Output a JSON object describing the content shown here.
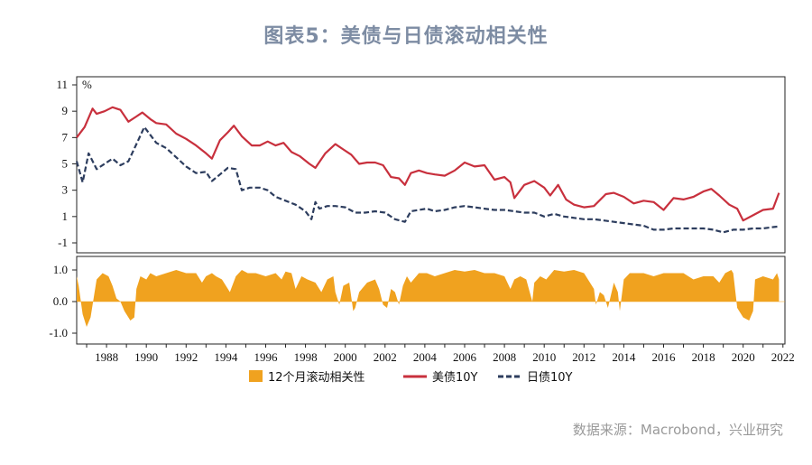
{
  "title": "图表5：美债与日债滚动相关性",
  "source": "数据来源：Macrobond，兴业研究",
  "colors": {
    "us": "#c8303d",
    "jp": "#2d3d5e",
    "corr": "#f0a21f"
  },
  "chart_data": [
    {
      "type": "line",
      "unit": "%",
      "xlim": [
        1987,
        2022.6
      ],
      "ylim": [
        -2,
        11
      ],
      "yticks": [
        "11",
        "9",
        "7",
        "5",
        "3",
        "1",
        "-1"
      ],
      "series": [
        {
          "name": "美债10Y",
          "x": [
            1987.0,
            1987.4,
            1987.8,
            1988.0,
            1988.4,
            1988.8,
            1989.2,
            1989.6,
            1990.0,
            1990.3,
            1990.7,
            1991.0,
            1991.5,
            1992.0,
            1992.5,
            1993.0,
            1993.5,
            1993.8,
            1994.2,
            1994.6,
            1994.9,
            1995.3,
            1995.8,
            1996.2,
            1996.6,
            1997.0,
            1997.4,
            1997.8,
            1998.2,
            1998.7,
            1999.0,
            1999.5,
            2000.0,
            2000.4,
            2000.8,
            2001.2,
            2001.6,
            2002.0,
            2002.4,
            2002.8,
            2003.2,
            2003.5,
            2003.8,
            2004.2,
            2004.6,
            2005.0,
            2005.5,
            2006.0,
            2006.5,
            2007.0,
            2007.5,
            2008.0,
            2008.5,
            2008.8,
            2009.0,
            2009.5,
            2010.0,
            2010.5,
            2010.8,
            2011.2,
            2011.6,
            2012.0,
            2012.5,
            2013.0,
            2013.6,
            2014.0,
            2014.5,
            2015.0,
            2015.5,
            2016.0,
            2016.5,
            2017.0,
            2017.5,
            2018.0,
            2018.5,
            2018.9,
            2019.3,
            2019.8,
            2020.2,
            2020.5,
            2021.0,
            2021.5,
            2022.0,
            2022.3
          ],
          "values": [
            7.0,
            7.8,
            9.2,
            8.8,
            9.0,
            9.3,
            9.1,
            8.2,
            8.6,
            8.9,
            8.4,
            8.1,
            8.0,
            7.3,
            6.9,
            6.4,
            5.8,
            5.4,
            6.8,
            7.4,
            7.9,
            7.1,
            6.4,
            6.4,
            6.7,
            6.4,
            6.6,
            5.9,
            5.6,
            5.0,
            4.7,
            5.8,
            6.5,
            6.1,
            5.7,
            5.0,
            5.1,
            5.1,
            4.9,
            4.0,
            3.9,
            3.4,
            4.3,
            4.5,
            4.3,
            4.2,
            4.1,
            4.5,
            5.1,
            4.8,
            4.9,
            3.8,
            4.0,
            3.6,
            2.4,
            3.4,
            3.7,
            3.2,
            2.6,
            3.4,
            2.3,
            1.9,
            1.7,
            1.8,
            2.7,
            2.8,
            2.5,
            2.0,
            2.2,
            2.1,
            1.5,
            2.4,
            2.3,
            2.5,
            2.9,
            3.1,
            2.6,
            1.9,
            1.6,
            0.7,
            1.1,
            1.5,
            1.6,
            2.8
          ]
        },
        {
          "name": "日债10Y",
          "x": [
            1987.0,
            1987.3,
            1987.6,
            1988.0,
            1988.4,
            1988.8,
            1989.2,
            1989.6,
            1990.0,
            1990.4,
            1990.7,
            1991.0,
            1991.5,
            1992.0,
            1992.5,
            1993.0,
            1993.5,
            1993.8,
            1994.2,
            1994.6,
            1995.0,
            1995.3,
            1995.7,
            1996.2,
            1996.6,
            1997.0,
            1997.5,
            1998.0,
            1998.5,
            1998.8,
            1999.0,
            1999.2,
            1999.6,
            2000.0,
            2000.5,
            2001.0,
            2001.5,
            2002.0,
            2002.5,
            2003.0,
            2003.5,
            2003.8,
            2004.2,
            2004.6,
            2005.0,
            2005.5,
            2006.0,
            2006.5,
            2007.0,
            2007.5,
            2008.0,
            2008.5,
            2009.0,
            2009.5,
            2010.0,
            2010.5,
            2011.0,
            2011.5,
            2012.0,
            2012.5,
            2013.0,
            2013.5,
            2014.0,
            2014.5,
            2015.0,
            2015.5,
            2016.0,
            2016.5,
            2017.0,
            2017.5,
            2018.0,
            2018.5,
            2019.0,
            2019.5,
            2020.0,
            2020.5,
            2021.0,
            2021.5,
            2022.0,
            2022.3
          ],
          "values": [
            5.2,
            3.6,
            5.8,
            4.6,
            5.0,
            5.4,
            4.9,
            5.2,
            6.5,
            7.8,
            7.2,
            6.6,
            6.2,
            5.5,
            4.8,
            4.3,
            4.4,
            3.7,
            4.2,
            4.7,
            4.6,
            3.0,
            3.2,
            3.2,
            3.0,
            2.5,
            2.2,
            1.9,
            1.4,
            0.8,
            2.1,
            1.6,
            1.8,
            1.8,
            1.7,
            1.3,
            1.3,
            1.4,
            1.3,
            0.8,
            0.6,
            1.4,
            1.5,
            1.6,
            1.4,
            1.5,
            1.7,
            1.8,
            1.7,
            1.6,
            1.5,
            1.5,
            1.4,
            1.3,
            1.3,
            1.0,
            1.2,
            1.0,
            0.9,
            0.8,
            0.8,
            0.7,
            0.6,
            0.5,
            0.4,
            0.3,
            0.0,
            0.0,
            0.1,
            0.1,
            0.1,
            0.1,
            0.0,
            -0.2,
            0.0,
            0.0,
            0.1,
            0.1,
            0.2,
            0.25
          ]
        }
      ]
    },
    {
      "type": "area",
      "ylim": [
        -1.0,
        1.0
      ],
      "yticks": [
        "1.0",
        "0.0",
        "-1.0"
      ],
      "xticks": [
        "1988",
        "1990",
        "1992",
        "1994",
        "1996",
        "1998",
        "2000",
        "2002",
        "2004",
        "2006",
        "2008",
        "2010",
        "2012",
        "2014",
        "2016",
        "2018",
        "2020",
        "2022"
      ],
      "series": [
        {
          "name": "12个月滚动相关性",
          "x": [
            1987.0,
            1987.1,
            1987.3,
            1987.5,
            1987.7,
            1988.0,
            1988.3,
            1988.6,
            1988.8,
            1989.0,
            1989.2,
            1989.4,
            1989.7,
            1989.9,
            1990.0,
            1990.2,
            1990.5,
            1990.7,
            1991.0,
            1991.5,
            1992.0,
            1992.5,
            1993.0,
            1993.3,
            1993.5,
            1993.8,
            1994.0,
            1994.3,
            1994.7,
            1995.0,
            1995.3,
            1995.6,
            1996.0,
            1996.5,
            1997.0,
            1997.3,
            1997.5,
            1997.8,
            1998.0,
            1998.3,
            1998.6,
            1999.0,
            1999.3,
            1999.6,
            1999.9,
            2000.0,
            2000.2,
            2000.4,
            2000.7,
            2000.9,
            2001.0,
            2001.2,
            2001.6,
            2002.0,
            2002.2,
            2002.4,
            2002.6,
            2002.8,
            2003.0,
            2003.2,
            2003.4,
            2003.6,
            2003.8,
            2004.2,
            2004.6,
            2005.0,
            2005.5,
            2006.0,
            2006.5,
            2007.0,
            2007.5,
            2008.0,
            2008.5,
            2008.8,
            2009.0,
            2009.3,
            2009.6,
            2009.9,
            2010.0,
            2010.3,
            2010.6,
            2011.0,
            2011.5,
            2012.0,
            2012.5,
            2013.0,
            2013.1,
            2013.3,
            2013.5,
            2013.7,
            2014.0,
            2014.2,
            2014.3,
            2014.5,
            2014.8,
            2015.0,
            2015.5,
            2016.0,
            2016.5,
            2017.0,
            2017.5,
            2018.0,
            2018.5,
            2019.0,
            2019.3,
            2019.6,
            2019.9,
            2020.0,
            2020.2,
            2020.5,
            2020.8,
            2021.0,
            2021.1,
            2021.5,
            2022.0,
            2022.2,
            2022.3
          ],
          "values": [
            0.8,
            0.5,
            -0.4,
            -0.8,
            -0.5,
            0.7,
            0.9,
            0.8,
            0.5,
            0.1,
            0.0,
            -0.3,
            -0.6,
            -0.5,
            0.4,
            0.8,
            0.7,
            0.9,
            0.8,
            0.9,
            1.0,
            0.9,
            0.9,
            0.6,
            0.8,
            0.9,
            0.8,
            0.7,
            0.3,
            0.8,
            1.0,
            0.9,
            0.9,
            0.8,
            0.9,
            0.7,
            0.95,
            0.9,
            0.4,
            0.8,
            0.7,
            0.6,
            0.3,
            0.7,
            0.8,
            0.3,
            -0.1,
            0.5,
            0.6,
            -0.3,
            -0.2,
            0.3,
            0.6,
            0.7,
            0.4,
            -0.1,
            -0.2,
            0.4,
            0.3,
            -0.1,
            0.5,
            0.8,
            0.6,
            0.9,
            0.9,
            0.8,
            0.9,
            1.0,
            0.95,
            1.0,
            0.9,
            0.9,
            0.8,
            0.4,
            0.7,
            0.8,
            0.7,
            0.0,
            0.6,
            0.8,
            0.7,
            1.0,
            0.95,
            1.0,
            0.9,
            0.4,
            -0.1,
            0.3,
            0.2,
            -0.2,
            0.6,
            0.3,
            -0.3,
            0.7,
            0.9,
            0.9,
            0.9,
            0.8,
            0.9,
            0.9,
            0.9,
            0.7,
            0.8,
            0.8,
            0.6,
            0.9,
            1.0,
            0.9,
            -0.2,
            -0.5,
            -0.6,
            -0.3,
            0.7,
            0.8,
            0.7,
            0.9,
            0.7
          ]
        }
      ]
    }
  ],
  "legend": [
    {
      "label": "12个月滚动相关性",
      "kind": "box"
    },
    {
      "label": "美债10Y",
      "kind": "solid"
    },
    {
      "label": "日债10Y",
      "kind": "dashed"
    }
  ]
}
